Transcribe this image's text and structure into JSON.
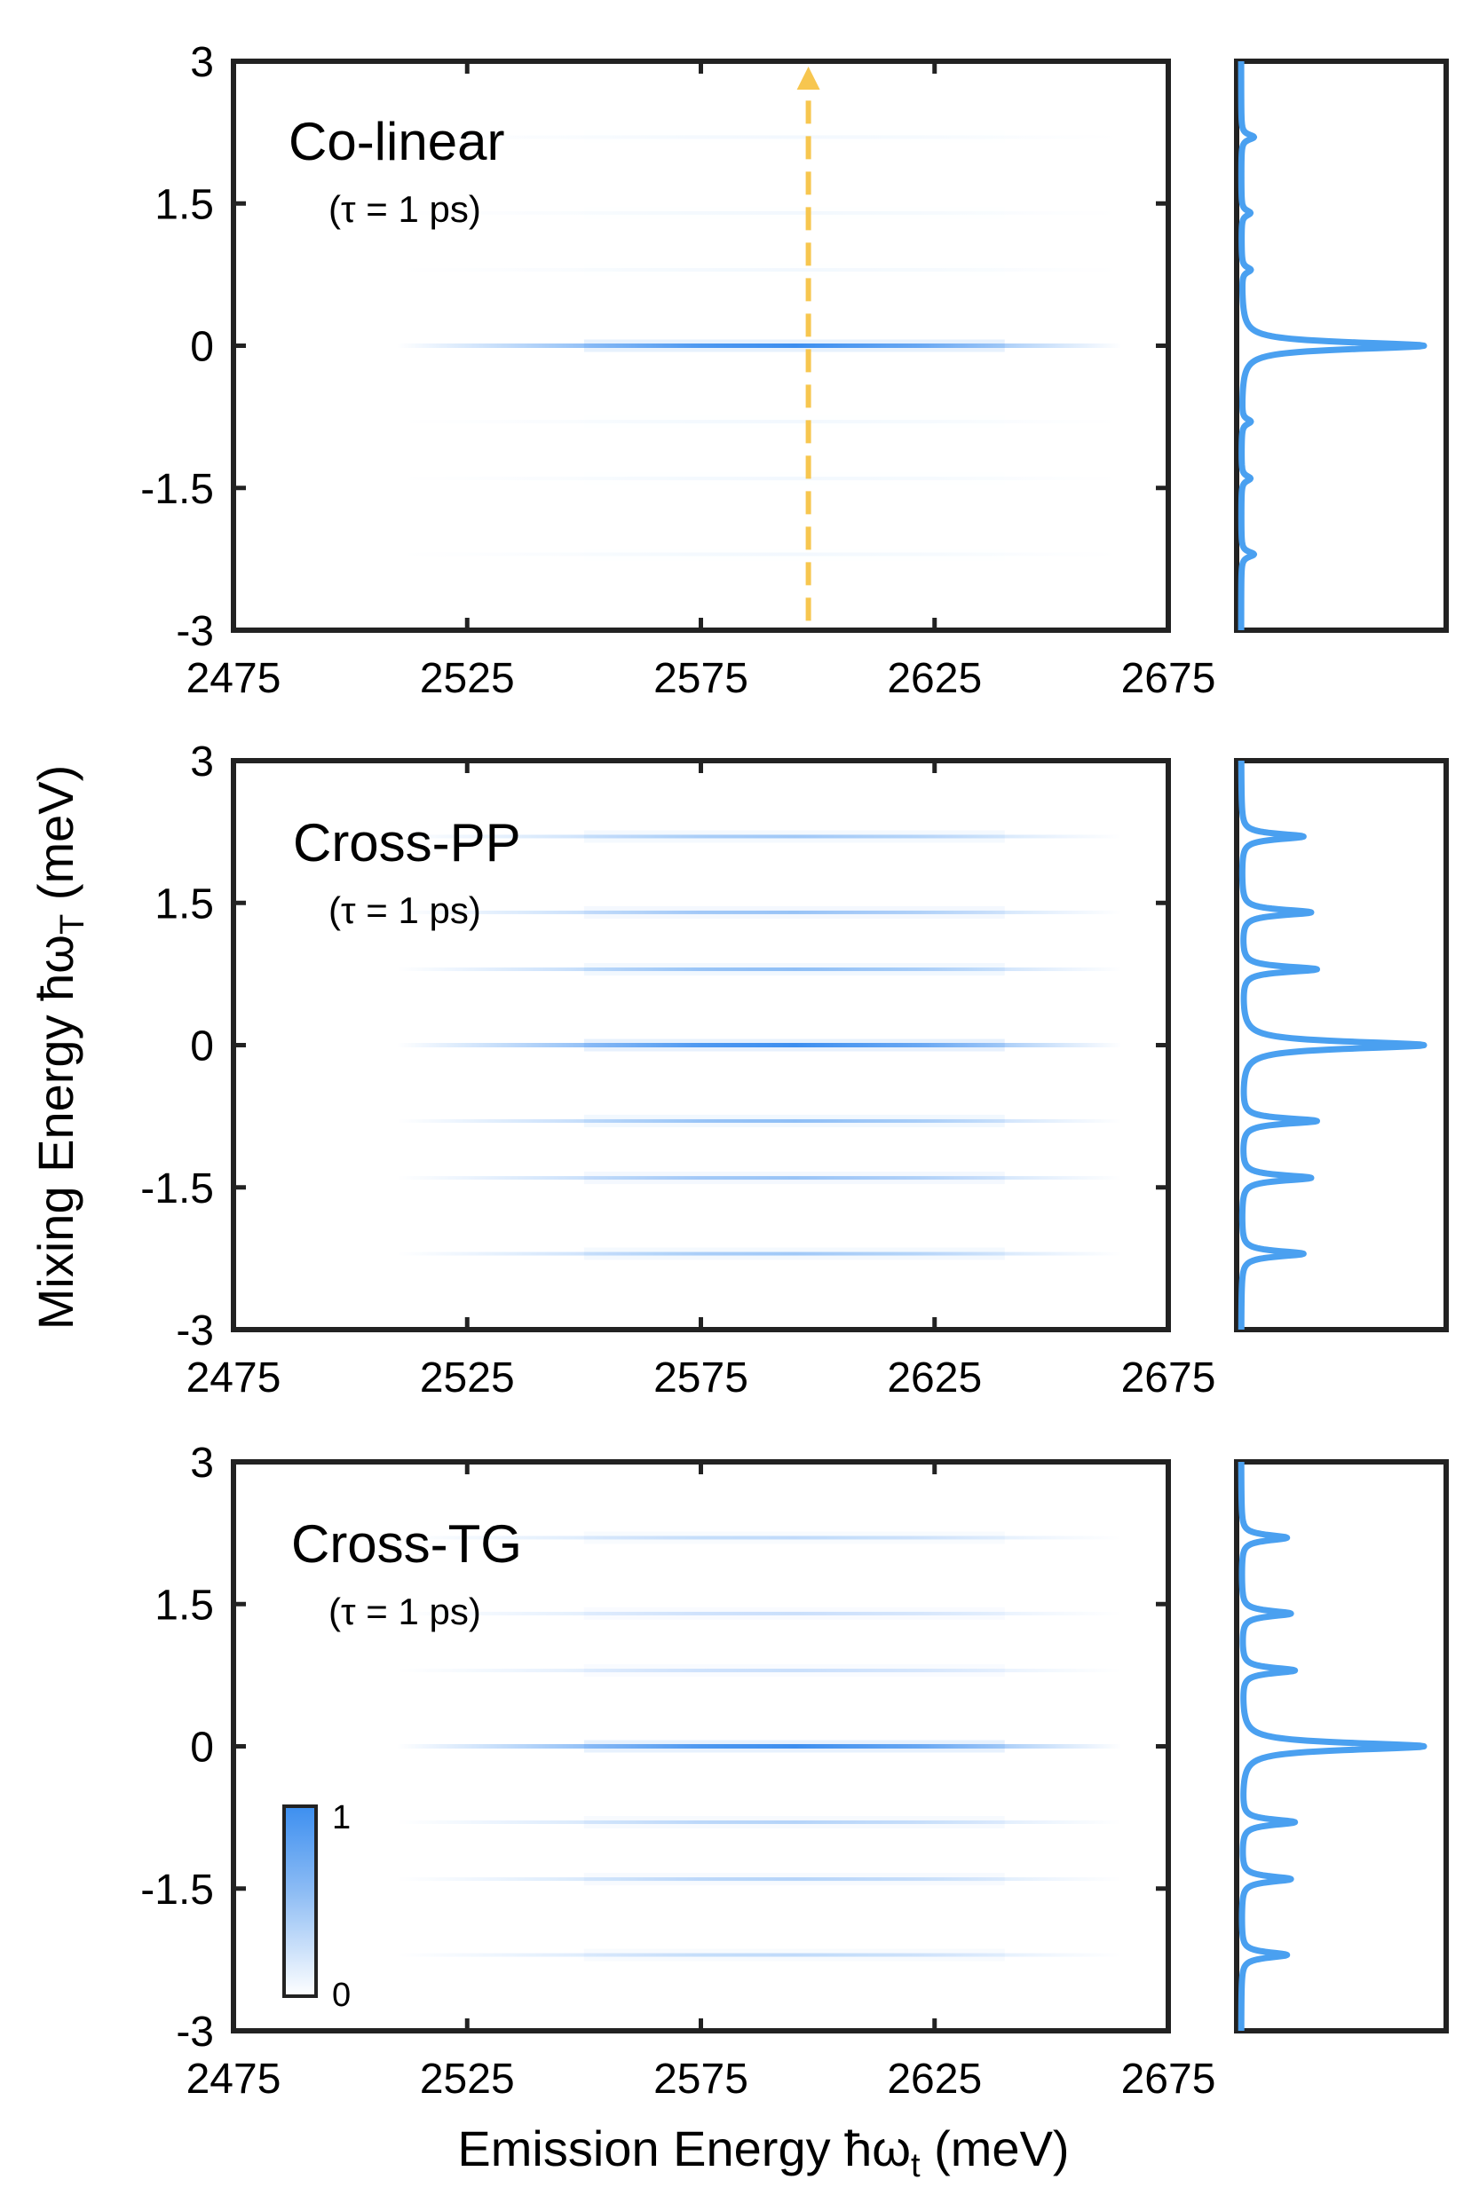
{
  "chart_data": {
    "type": "heatmap",
    "xlabel": "Emission Energy ħω",
    "xlabel_sub": "t",
    "xlabel_unit": " (meV)",
    "ylabel": "Mixing Energy ħω",
    "ylabel_sub": "T",
    "ylabel_unit": " (meV)",
    "xlim": [
      2475,
      2675
    ],
    "ylim": [
      -3,
      3
    ],
    "x_ticks": [
      "2475",
      "2525",
      "2575",
      "2625",
      "2675"
    ],
    "y_ticks": [
      "3",
      "1.5",
      "0",
      "-1.5",
      "-3"
    ],
    "colorbar": {
      "min": "0",
      "max": "1",
      "colors": [
        "#ffffff",
        "#3d8ff0"
      ]
    },
    "marker": {
      "x": 2598,
      "y_from": -2.9,
      "y_to": 2.85,
      "color": "#f7c64f",
      "style": "dashed-arrow"
    },
    "panels": [
      {
        "label": "Co-linear",
        "tau": "(τ = 1 ps)",
        "stripes": [
          {
            "y": 2.2,
            "intensity": 0.04
          },
          {
            "y": 1.4,
            "intensity": 0.03
          },
          {
            "y": 0.8,
            "intensity": 0.03
          },
          {
            "y": 0.0,
            "intensity": 1.0
          },
          {
            "y": -0.8,
            "intensity": 0.03
          },
          {
            "y": -1.4,
            "intensity": 0.03
          },
          {
            "y": -2.2,
            "intensity": 0.04
          }
        ],
        "lineout": [
          {
            "y": 2.2,
            "intensity": 0.07
          },
          {
            "y": 1.4,
            "intensity": 0.05
          },
          {
            "y": 0.8,
            "intensity": 0.05
          },
          {
            "y": 0.0,
            "intensity": 1.0
          },
          {
            "y": -0.8,
            "intensity": 0.05
          },
          {
            "y": -1.4,
            "intensity": 0.05
          },
          {
            "y": -2.2,
            "intensity": 0.07
          }
        ]
      },
      {
        "label": "Cross-PP",
        "tau": "(τ = 1 ps)",
        "stripes": [
          {
            "y": 2.2,
            "intensity": 0.45
          },
          {
            "y": 1.4,
            "intensity": 0.5
          },
          {
            "y": 0.8,
            "intensity": 0.55
          },
          {
            "y": 0.0,
            "intensity": 1.0
          },
          {
            "y": -0.8,
            "intensity": 0.55
          },
          {
            "y": -1.4,
            "intensity": 0.5
          },
          {
            "y": -2.2,
            "intensity": 0.45
          }
        ],
        "lineout": [
          {
            "y": 2.2,
            "intensity": 0.34
          },
          {
            "y": 1.4,
            "intensity": 0.38
          },
          {
            "y": 0.8,
            "intensity": 0.41
          },
          {
            "y": 0.0,
            "intensity": 1.0
          },
          {
            "y": -0.8,
            "intensity": 0.41
          },
          {
            "y": -1.4,
            "intensity": 0.38
          },
          {
            "y": -2.2,
            "intensity": 0.34
          }
        ]
      },
      {
        "label": "Cross-TG",
        "tau": "(τ = 1 ps)",
        "stripes": [
          {
            "y": 2.2,
            "intensity": 0.3
          },
          {
            "y": 1.4,
            "intensity": 0.25
          },
          {
            "y": 0.8,
            "intensity": 0.25
          },
          {
            "y": 0.0,
            "intensity": 1.0
          },
          {
            "y": -0.8,
            "intensity": 0.35
          },
          {
            "y": -1.4,
            "intensity": 0.35
          },
          {
            "y": -2.2,
            "intensity": 0.3
          }
        ],
        "lineout": [
          {
            "y": 2.2,
            "intensity": 0.25
          },
          {
            "y": 1.4,
            "intensity": 0.27
          },
          {
            "y": 0.8,
            "intensity": 0.29
          },
          {
            "y": 0.0,
            "intensity": 1.0
          },
          {
            "y": -0.8,
            "intensity": 0.29
          },
          {
            "y": -1.4,
            "intensity": 0.27
          },
          {
            "y": -2.2,
            "intensity": 0.25
          }
        ]
      }
    ]
  }
}
